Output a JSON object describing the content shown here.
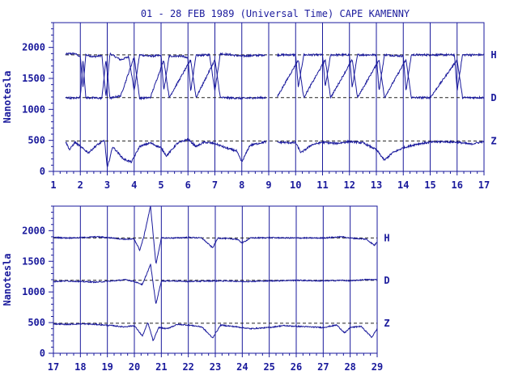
{
  "chart_data": {
    "type": "line",
    "title": "01 - 28 FEB 1989 (Universal Time) CAPE KAMENNY",
    "ylabel": "Nanotesla",
    "color": "#1a1a9c",
    "yticks": [
      0,
      500,
      1000,
      1500,
      2000
    ],
    "ylim": [
      0,
      2400
    ],
    "components": [
      "H",
      "D",
      "Z"
    ],
    "baselines": {
      "H": 1880,
      "D": 1190,
      "Z": 490
    },
    "panels": [
      {
        "xlim": [
          1,
          17
        ],
        "xticks": [
          "1",
          "2",
          "3",
          "4",
          "5",
          "6",
          "7",
          "8",
          "9",
          "10",
          "11",
          "12",
          "13",
          "14",
          "15",
          "16",
          "17"
        ],
        "data_start": 1.45,
        "gaps": [
          [
            8.9,
            9.3
          ]
        ],
        "H": [
          [
            1.45,
            1890
          ],
          [
            1.6,
            1900
          ],
          [
            1.8,
            1900
          ],
          [
            2.0,
            1850
          ],
          [
            2.1,
            1350
          ],
          [
            2.2,
            1880
          ],
          [
            2.5,
            1850
          ],
          [
            2.8,
            1870
          ],
          [
            2.95,
            1200
          ],
          [
            3.1,
            1900
          ],
          [
            3.5,
            1800
          ],
          [
            3.8,
            1850
          ],
          [
            4.0,
            1300
          ],
          [
            4.2,
            1880
          ],
          [
            4.6,
            1860
          ],
          [
            5.0,
            1870
          ],
          [
            5.1,
            1300
          ],
          [
            5.3,
            1860
          ],
          [
            5.8,
            1860
          ],
          [
            6.0,
            1820
          ],
          [
            6.1,
            1300
          ],
          [
            6.3,
            1870
          ],
          [
            6.8,
            1880
          ],
          [
            7.0,
            1300
          ],
          [
            7.2,
            1900
          ],
          [
            7.6,
            1880
          ],
          [
            8.0,
            1860
          ],
          [
            8.9,
            1880
          ],
          [
            9.3,
            1880
          ],
          [
            10.0,
            1880
          ],
          [
            10.1,
            1350
          ],
          [
            10.3,
            1880
          ],
          [
            11.0,
            1880
          ],
          [
            11.1,
            1360
          ],
          [
            11.3,
            1880
          ],
          [
            12.0,
            1880
          ],
          [
            12.1,
            1350
          ],
          [
            12.3,
            1880
          ],
          [
            13.0,
            1880
          ],
          [
            13.1,
            1300
          ],
          [
            13.3,
            1880
          ],
          [
            14.0,
            1860
          ],
          [
            14.1,
            1300
          ],
          [
            14.3,
            1880
          ],
          [
            15.0,
            1880
          ],
          [
            15.9,
            1880
          ],
          [
            16.0,
            1300
          ],
          [
            16.2,
            1880
          ],
          [
            17.0,
            1880
          ]
        ],
        "D": [
          [
            1.45,
            1190
          ],
          [
            1.8,
            1180
          ],
          [
            2.0,
            1200
          ],
          [
            2.1,
            1800
          ],
          [
            2.2,
            1190
          ],
          [
            2.8,
            1180
          ],
          [
            2.95,
            1800
          ],
          [
            3.1,
            1180
          ],
          [
            3.5,
            1220
          ],
          [
            4.0,
            1850
          ],
          [
            4.2,
            1180
          ],
          [
            4.6,
            1190
          ],
          [
            5.1,
            1800
          ],
          [
            5.3,
            1190
          ],
          [
            6.1,
            1800
          ],
          [
            6.3,
            1190
          ],
          [
            7.0,
            1800
          ],
          [
            7.2,
            1190
          ],
          [
            8.0,
            1180
          ],
          [
            8.9,
            1190
          ],
          [
            9.3,
            1190
          ],
          [
            10.1,
            1800
          ],
          [
            10.3,
            1190
          ],
          [
            11.1,
            1800
          ],
          [
            11.3,
            1190
          ],
          [
            12.1,
            1800
          ],
          [
            12.3,
            1190
          ],
          [
            13.1,
            1800
          ],
          [
            13.3,
            1190
          ],
          [
            14.1,
            1800
          ],
          [
            14.3,
            1190
          ],
          [
            15.0,
            1190
          ],
          [
            16.0,
            1800
          ],
          [
            16.2,
            1190
          ],
          [
            17.0,
            1190
          ]
        ],
        "Z": [
          [
            1.45,
            480
          ],
          [
            1.6,
            350
          ],
          [
            1.8,
            470
          ],
          [
            2.0,
            400
          ],
          [
            2.3,
            300
          ],
          [
            2.6,
            420
          ],
          [
            2.9,
            500
          ],
          [
            3.0,
            50
          ],
          [
            3.2,
            400
          ],
          [
            3.6,
            200
          ],
          [
            3.9,
            150
          ],
          [
            4.2,
            400
          ],
          [
            4.6,
            460
          ],
          [
            5.0,
            380
          ],
          [
            5.2,
            250
          ],
          [
            5.6,
            450
          ],
          [
            6.0,
            520
          ],
          [
            6.3,
            400
          ],
          [
            6.6,
            470
          ],
          [
            7.0,
            450
          ],
          [
            7.4,
            380
          ],
          [
            7.8,
            330
          ],
          [
            8.0,
            150
          ],
          [
            8.3,
            420
          ],
          [
            8.9,
            480
          ],
          [
            9.3,
            470
          ],
          [
            10.0,
            460
          ],
          [
            10.2,
            300
          ],
          [
            10.6,
            430
          ],
          [
            11.0,
            470
          ],
          [
            11.5,
            450
          ],
          [
            12.0,
            480
          ],
          [
            12.5,
            460
          ],
          [
            13.0,
            350
          ],
          [
            13.3,
            180
          ],
          [
            13.6,
            300
          ],
          [
            14.0,
            380
          ],
          [
            14.5,
            440
          ],
          [
            15.0,
            470
          ],
          [
            15.5,
            480
          ],
          [
            16.0,
            470
          ],
          [
            16.5,
            440
          ],
          [
            17.0,
            480
          ]
        ]
      },
      {
        "xlim": [
          17,
          29
        ],
        "xticks": [
          "17",
          "18",
          "19",
          "20",
          "21",
          "22",
          "23",
          "24",
          "25",
          "26",
          "27",
          "28",
          "29"
        ],
        "data_start": 17,
        "gaps": [],
        "H": [
          [
            17,
            1890
          ],
          [
            17.5,
            1880
          ],
          [
            18.0,
            1885
          ],
          [
            18.6,
            1900
          ],
          [
            19.2,
            1880
          ],
          [
            19.6,
            1860
          ],
          [
            20.0,
            1860
          ],
          [
            20.2,
            1680
          ],
          [
            20.35,
            1900
          ],
          [
            20.6,
            2400
          ],
          [
            20.8,
            1450
          ],
          [
            21.0,
            1880
          ],
          [
            21.5,
            1880
          ],
          [
            22.0,
            1890
          ],
          [
            22.5,
            1880
          ],
          [
            22.9,
            1720
          ],
          [
            23.1,
            1880
          ],
          [
            23.8,
            1860
          ],
          [
            24.0,
            1800
          ],
          [
            24.3,
            1880
          ],
          [
            25.0,
            1885
          ],
          [
            26.0,
            1880
          ],
          [
            27.0,
            1880
          ],
          [
            27.7,
            1900
          ],
          [
            28.0,
            1880
          ],
          [
            28.6,
            1860
          ],
          [
            28.9,
            1760
          ],
          [
            29,
            1820
          ]
        ],
        "D": [
          [
            17,
            1170
          ],
          [
            17.5,
            1180
          ],
          [
            18.0,
            1170
          ],
          [
            18.6,
            1160
          ],
          [
            19.2,
            1180
          ],
          [
            19.7,
            1200
          ],
          [
            20.0,
            1170
          ],
          [
            20.3,
            1120
          ],
          [
            20.6,
            1450
          ],
          [
            20.8,
            800
          ],
          [
            21.0,
            1180
          ],
          [
            21.5,
            1180
          ],
          [
            22.0,
            1170
          ],
          [
            22.8,
            1180
          ],
          [
            23.5,
            1180
          ],
          [
            24.0,
            1170
          ],
          [
            25.0,
            1180
          ],
          [
            26.0,
            1190
          ],
          [
            27.0,
            1180
          ],
          [
            27.7,
            1190
          ],
          [
            28.0,
            1180
          ],
          [
            28.5,
            1200
          ],
          [
            29,
            1200
          ]
        ],
        "Z": [
          [
            17,
            480
          ],
          [
            17.5,
            470
          ],
          [
            18.0,
            480
          ],
          [
            18.6,
            470
          ],
          [
            19.2,
            450
          ],
          [
            19.6,
            430
          ],
          [
            20.0,
            450
          ],
          [
            20.3,
            280
          ],
          [
            20.5,
            500
          ],
          [
            20.7,
            200
          ],
          [
            20.9,
            420
          ],
          [
            21.2,
            400
          ],
          [
            21.6,
            470
          ],
          [
            22.0,
            460
          ],
          [
            22.5,
            430
          ],
          [
            22.9,
            250
          ],
          [
            23.2,
            460
          ],
          [
            23.8,
            430
          ],
          [
            24.3,
            400
          ],
          [
            25.0,
            420
          ],
          [
            25.5,
            450
          ],
          [
            26.0,
            440
          ],
          [
            26.5,
            430
          ],
          [
            27.0,
            420
          ],
          [
            27.5,
            460
          ],
          [
            27.8,
            330
          ],
          [
            28.0,
            420
          ],
          [
            28.4,
            440
          ],
          [
            28.8,
            260
          ],
          [
            29,
            400
          ]
        ]
      }
    ]
  }
}
